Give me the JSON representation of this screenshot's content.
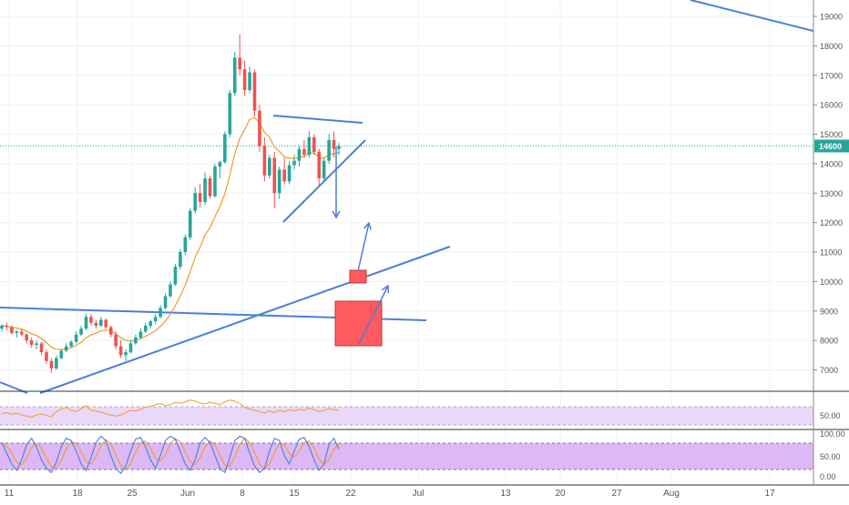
{
  "chart_data": {
    "type": "candlestick",
    "main": {
      "price_axis": {
        "ticks": [
          "7000",
          "8000",
          "9000",
          "10000",
          "11000",
          "12000",
          "13000",
          "14000",
          "15000",
          "16000",
          "17000",
          "18000",
          "19000"
        ],
        "ylim": [
          6300,
          19100
        ],
        "last_price_label": "14600"
      },
      "last_price": 14600,
      "ema_color": "#f39a2a",
      "candle_up_color": "#26a69a",
      "candle_down_color": "#ef5350",
      "annotation_color": "#4a7fd8",
      "box_color": "#ff5a5f",
      "candles": [
        [
          8400,
          8550,
          8300,
          8500
        ],
        [
          8500,
          8600,
          8350,
          8450
        ],
        [
          8450,
          8500,
          8200,
          8250
        ],
        [
          8250,
          8350,
          8100,
          8300
        ],
        [
          8300,
          8400,
          8150,
          8200
        ],
        [
          8200,
          8250,
          7900,
          8000
        ],
        [
          8000,
          8100,
          7750,
          7850
        ],
        [
          7850,
          8000,
          7700,
          7900
        ],
        [
          7900,
          7950,
          7500,
          7600
        ],
        [
          7600,
          7700,
          7200,
          7300
        ],
        [
          7300,
          7400,
          6900,
          7050
        ],
        [
          7050,
          7500,
          7000,
          7400
        ],
        [
          7400,
          7700,
          7350,
          7650
        ],
        [
          7650,
          7900,
          7600,
          7800
        ],
        [
          7800,
          8000,
          7750,
          7950
        ],
        [
          7950,
          8300,
          7900,
          8200
        ],
        [
          8200,
          8500,
          8150,
          8400
        ],
        [
          8400,
          8900,
          8350,
          8800
        ],
        [
          8800,
          8900,
          8500,
          8600
        ],
        [
          8600,
          8700,
          8400,
          8500
        ],
        [
          8500,
          8800,
          8450,
          8700
        ],
        [
          8700,
          8750,
          8400,
          8450
        ],
        [
          8450,
          8500,
          8100,
          8200
        ],
        [
          8200,
          8300,
          7700,
          7800
        ],
        [
          7800,
          8000,
          7400,
          7500
        ],
        [
          7500,
          7700,
          7300,
          7600
        ],
        [
          7600,
          8000,
          7550,
          7900
        ],
        [
          7900,
          8200,
          7850,
          8100
        ],
        [
          8100,
          8400,
          8050,
          8300
        ],
        [
          8300,
          8600,
          8250,
          8500
        ],
        [
          8500,
          8700,
          8400,
          8650
        ],
        [
          8650,
          8900,
          8550,
          8800
        ],
        [
          8800,
          9200,
          8750,
          9100
        ],
        [
          9100,
          9600,
          9050,
          9500
        ],
        [
          9500,
          10000,
          9450,
          9900
        ],
        [
          9900,
          10600,
          9850,
          10500
        ],
        [
          10500,
          11100,
          10400,
          11000
        ],
        [
          11000,
          11600,
          10900,
          11500
        ],
        [
          11500,
          12500,
          11400,
          12400
        ],
        [
          12400,
          13200,
          12300,
          13000
        ],
        [
          13000,
          13300,
          12500,
          12700
        ],
        [
          12700,
          13700,
          12600,
          13500
        ],
        [
          13500,
          13600,
          12800,
          12900
        ],
        [
          12900,
          14000,
          12850,
          13900
        ],
        [
          13900,
          14100,
          13500,
          14050
        ],
        [
          14050,
          15100,
          14000,
          15000
        ],
        [
          15000,
          16500,
          14900,
          16400
        ],
        [
          16400,
          17800,
          16300,
          17600
        ],
        [
          17600,
          18400,
          17000,
          17200
        ],
        [
          17200,
          17500,
          16300,
          16500
        ],
        [
          16500,
          17300,
          16400,
          17100
        ],
        [
          17100,
          17200,
          15600,
          15800
        ],
        [
          15800,
          16000,
          14400,
          14600
        ],
        [
          14600,
          14900,
          13400,
          13600
        ],
        [
          13600,
          14300,
          13500,
          14200
        ],
        [
          14200,
          14400,
          12500,
          13000
        ],
        [
          13000,
          13900,
          12800,
          13800
        ],
        [
          13800,
          14200,
          13300,
          13400
        ],
        [
          13400,
          14100,
          13300,
          13950
        ],
        [
          13950,
          14300,
          13800,
          14100
        ],
        [
          14100,
          14600,
          13900,
          14500
        ],
        [
          14500,
          14800,
          14200,
          14300
        ],
        [
          14300,
          15100,
          14200,
          14900
        ],
        [
          14900,
          15000,
          14300,
          14400
        ],
        [
          14400,
          14500,
          13200,
          13500
        ],
        [
          13500,
          14200,
          13400,
          14100
        ],
        [
          14100,
          15000,
          14000,
          14800
        ],
        [
          14800,
          15100,
          14200,
          14500
        ],
        [
          14500,
          14700,
          14300,
          14600
        ]
      ]
    },
    "rsi": {
      "level_label": "50.00",
      "line_color": "#f39a2a",
      "values": [
        44,
        46,
        43,
        45,
        42,
        40,
        38,
        42,
        44,
        41,
        39,
        48,
        52,
        55,
        50,
        48,
        53,
        58,
        50,
        49,
        47,
        44,
        42,
        40,
        42,
        46,
        50,
        49,
        52,
        55,
        57,
        60,
        62,
        58,
        60,
        64,
        62,
        65,
        68,
        66,
        63,
        61,
        64,
        62,
        60,
        65,
        68,
        66,
        62,
        55,
        52,
        50,
        48,
        45,
        49,
        46,
        50,
        48,
        51,
        49,
        52,
        50,
        54,
        51,
        48,
        50,
        53,
        51,
        50
      ]
    },
    "stoch": {
      "tick_labels": [
        "100.00",
        "50.00",
        "0.00"
      ],
      "k_color": "#4a7fd8",
      "d_color": "#f39a2a",
      "k_values": [
        80,
        55,
        30,
        15,
        40,
        75,
        90,
        70,
        40,
        20,
        10,
        35,
        70,
        90,
        85,
        60,
        30,
        15,
        45,
        80,
        95,
        85,
        50,
        20,
        8,
        25,
        60,
        88,
        92,
        70,
        40,
        20,
        50,
        85,
        95,
        88,
        60,
        30,
        15,
        40,
        78,
        92,
        80,
        50,
        20,
        10,
        45,
        85,
        95,
        90,
        55,
        25,
        10,
        20,
        60,
        90,
        85,
        50,
        30,
        60,
        88,
        92,
        70,
        40,
        15,
        30,
        75,
        90,
        65
      ]
    },
    "time_axis": {
      "labels": [
        "11",
        "18",
        "25",
        "Jun",
        "8",
        "15",
        "22",
        "Jul",
        "13",
        "20",
        "27",
        "Aug",
        "17"
      ]
    }
  }
}
